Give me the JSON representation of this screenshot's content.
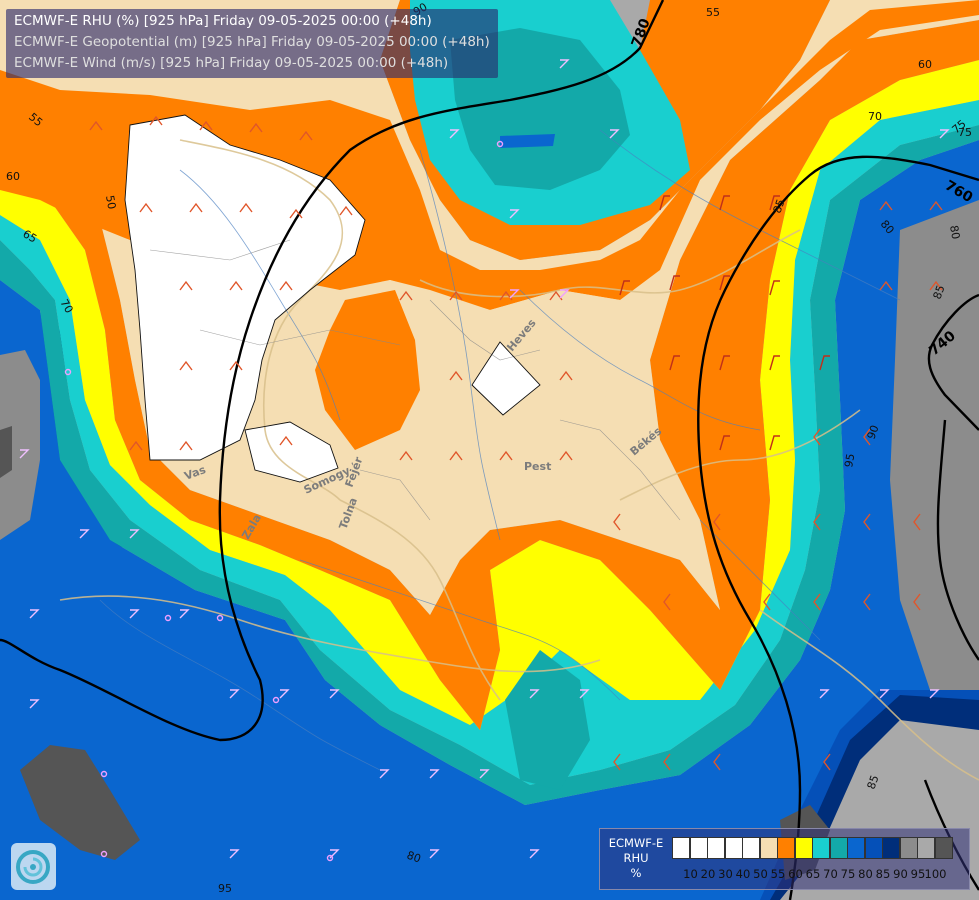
{
  "header": {
    "title_rhu": "ECMWF-E RHU (%) [925 hPa] Friday 09-05-2025 00:00 (+48h)",
    "title_geopotential": "ECMWF-E Geopotential (m) [925 hPa] Friday 09-05-2025 00:00 (+48h)",
    "title_wind": "ECMWF-E Wind (m/s) [925 hPa] Friday 09-05-2025 00:00 (+48h)"
  },
  "legend": {
    "model": "ECMWF-E",
    "variable": "RHU",
    "unit": "%",
    "colors": [
      "#ffffff",
      "#ffffff",
      "#ffffff",
      "#ffffff",
      "#ffffff",
      "#f5deb3",
      "#ff8000",
      "#ffff00",
      "#19cfcf",
      "#13a9a9",
      "#0a66cf",
      "#0550b8",
      "#002e7a",
      "#8c8c8c",
      "#a9a9a9",
      "#555555"
    ],
    "ticks": [
      "10",
      "20",
      "30",
      "40",
      "50",
      "55",
      "60",
      "65",
      "70",
      "75",
      "80",
      "85",
      "90",
      "95",
      "100"
    ]
  },
  "contour_labels": {
    "rhu": [
      "50",
      "55",
      "60",
      "65",
      "70",
      "75",
      "80",
      "85",
      "90",
      "95",
      "55",
      "60",
      "70",
      "75",
      "80",
      "85",
      "90",
      "80",
      "85",
      "95"
    ],
    "geopotential": [
      "780",
      "760",
      "740"
    ]
  },
  "place_names": [
    "Heves",
    "Pest",
    "Békés",
    "Somogy",
    "Fejér",
    "Tolna",
    "Vas",
    "Zala"
  ],
  "colors": {
    "rhu_50": "#ffffff",
    "rhu_55": "#f5deb3",
    "rhu_60": "#ff8000",
    "rhu_65": "#ffff00",
    "rhu_70": "#19cfcf",
    "rhu_75": "#13a9a9",
    "rhu_80": "#0a66cf",
    "rhu_85": "#0550b8",
    "rhu_90": "#002e7a",
    "rhu_95": "#8c8c8c",
    "rhu_100": "#555555",
    "background": "#a9a9a9"
  },
  "icons": [
    "ecmwf-logo-icon"
  ]
}
